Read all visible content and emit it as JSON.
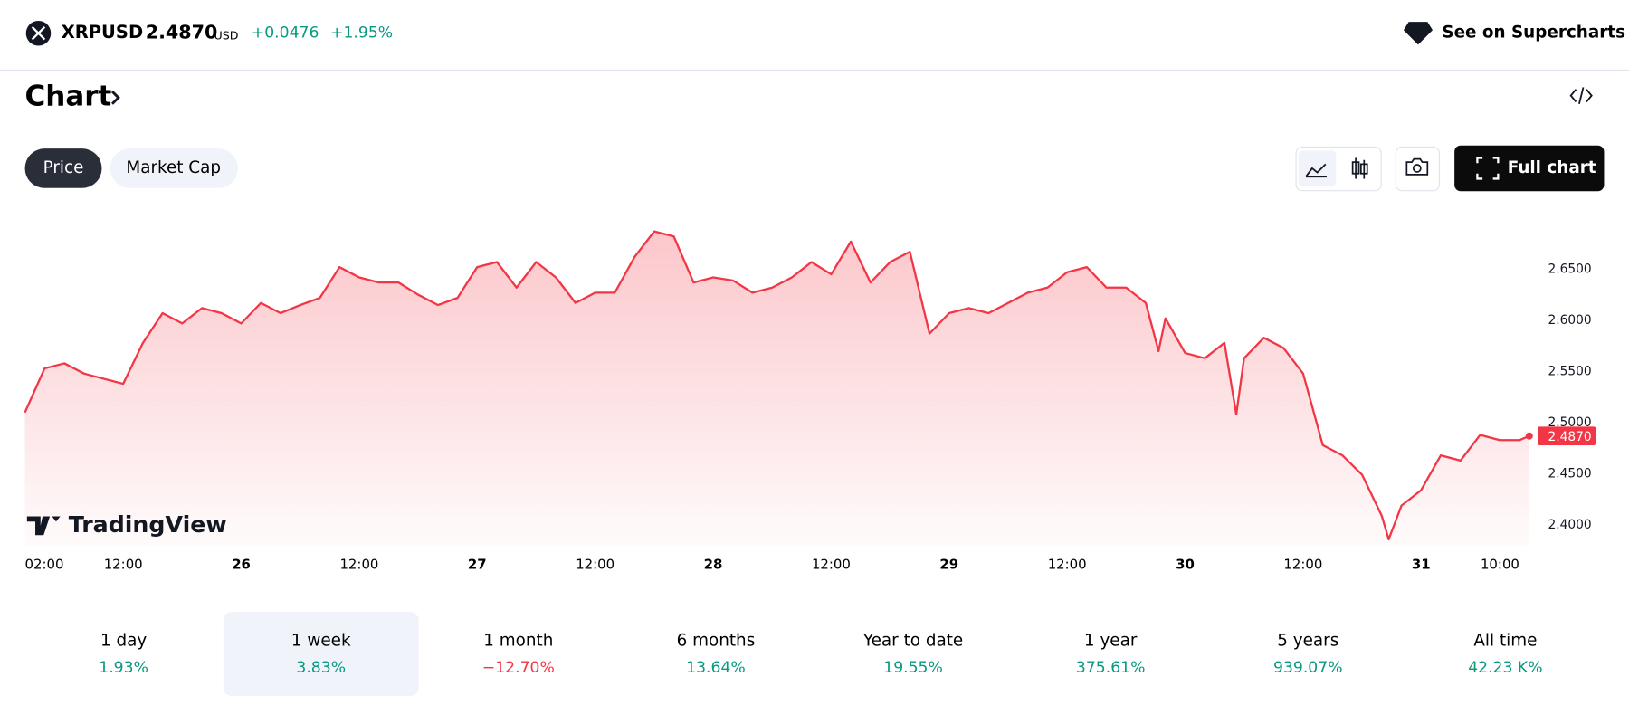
{
  "header": {
    "symbol": "XRPUSD",
    "price": "2.4870",
    "currency": "USD",
    "change": "+0.0476",
    "change_pct": "+1.95%",
    "supercharts": "See on Supercharts"
  },
  "section_title": "Chart",
  "tabs": [
    "Price",
    "Market Cap"
  ],
  "full_chart": "Full chart",
  "chart": {
    "type": "line",
    "watermark": "TradingView",
    "color": "#f23645",
    "x": [
      2,
      4,
      6,
      8,
      10,
      12,
      14,
      16,
      18,
      20,
      22,
      24,
      26,
      28,
      30,
      32,
      34,
      36,
      38,
      40,
      42,
      44,
      46,
      48,
      50,
      52,
      54,
      56,
      58,
      60,
      62,
      64,
      66,
      68,
      70,
      72,
      74,
      76,
      78,
      80,
      82,
      84,
      86,
      88,
      90,
      92,
      94,
      96,
      98,
      100,
      102,
      104,
      106,
      108,
      110,
      112,
      114,
      116,
      117.3,
      118,
      120,
      122,
      124,
      125.2,
      126,
      128,
      130,
      132,
      134,
      136,
      138,
      140,
      140.7,
      142,
      144,
      146,
      148,
      150,
      152,
      154,
      155
    ],
    "values": [
      2.51,
      2.553,
      2.558,
      2.548,
      2.543,
      2.538,
      2.578,
      2.607,
      2.597,
      2.612,
      2.607,
      2.597,
      2.617,
      2.607,
      2.615,
      2.622,
      2.652,
      2.642,
      2.637,
      2.637,
      2.625,
      2.615,
      2.622,
      2.652,
      2.657,
      2.632,
      2.657,
      2.642,
      2.617,
      2.627,
      2.627,
      2.662,
      2.687,
      2.682,
      2.637,
      2.642,
      2.639,
      2.627,
      2.632,
      2.642,
      2.657,
      2.645,
      2.677,
      2.637,
      2.657,
      2.667,
      2.587,
      2.607,
      2.612,
      2.607,
      2.617,
      2.627,
      2.632,
      2.647,
      2.652,
      2.632,
      2.632,
      2.617,
      2.57,
      2.602,
      2.568,
      2.563,
      2.578,
      2.508,
      2.563,
      2.583,
      2.573,
      2.548,
      2.478,
      2.468,
      2.449,
      2.409,
      2.386,
      2.419,
      2.434,
      2.468,
      2.463,
      2.488,
      2.483,
      2.483,
      2.487
    ],
    "xlim": [
      2,
      155
    ],
    "xticks": [
      {
        "value": 2,
        "label": "02:00"
      },
      {
        "value": 12,
        "label": "12:00"
      },
      {
        "value": 24,
        "label": "26"
      },
      {
        "value": 36,
        "label": "12:00"
      },
      {
        "value": 48,
        "label": "27"
      },
      {
        "value": 60,
        "label": "12:00"
      },
      {
        "value": 72,
        "label": "28"
      },
      {
        "value": 84,
        "label": "12:00"
      },
      {
        "value": 96,
        "label": "29"
      },
      {
        "value": 108,
        "label": "12:00"
      },
      {
        "value": 120,
        "label": "30"
      },
      {
        "value": 132,
        "label": "12:00"
      },
      {
        "value": 144,
        "label": "31"
      },
      {
        "value": 154,
        "label": "10:00"
      }
    ],
    "ylim": [
      2.38,
      2.71
    ],
    "yticks": [
      {
        "value": 2.4,
        "label": "2.4000"
      },
      {
        "value": 2.45,
        "label": "2.4500"
      },
      {
        "value": 2.5,
        "label": "2.5000"
      },
      {
        "value": 2.55,
        "label": "2.5500"
      },
      {
        "value": 2.6,
        "label": "2.6000"
      },
      {
        "value": 2.65,
        "label": "2.6500"
      }
    ]
  },
  "periods": [
    {
      "label": "1 day",
      "value": "1.93%"
    },
    {
      "label": "1 week",
      "value": "3.83%"
    },
    {
      "label": "1 month",
      "value": "−12.70%"
    },
    {
      "label": "6 months",
      "value": "13.64%"
    },
    {
      "label": "Year to date",
      "value": "19.55%"
    },
    {
      "label": "1 year",
      "value": "375.61%"
    },
    {
      "label": "5 years",
      "value": "939.07%"
    },
    {
      "label": "All time",
      "value": "42.23 K%"
    }
  ],
  "selected_period": 1
}
